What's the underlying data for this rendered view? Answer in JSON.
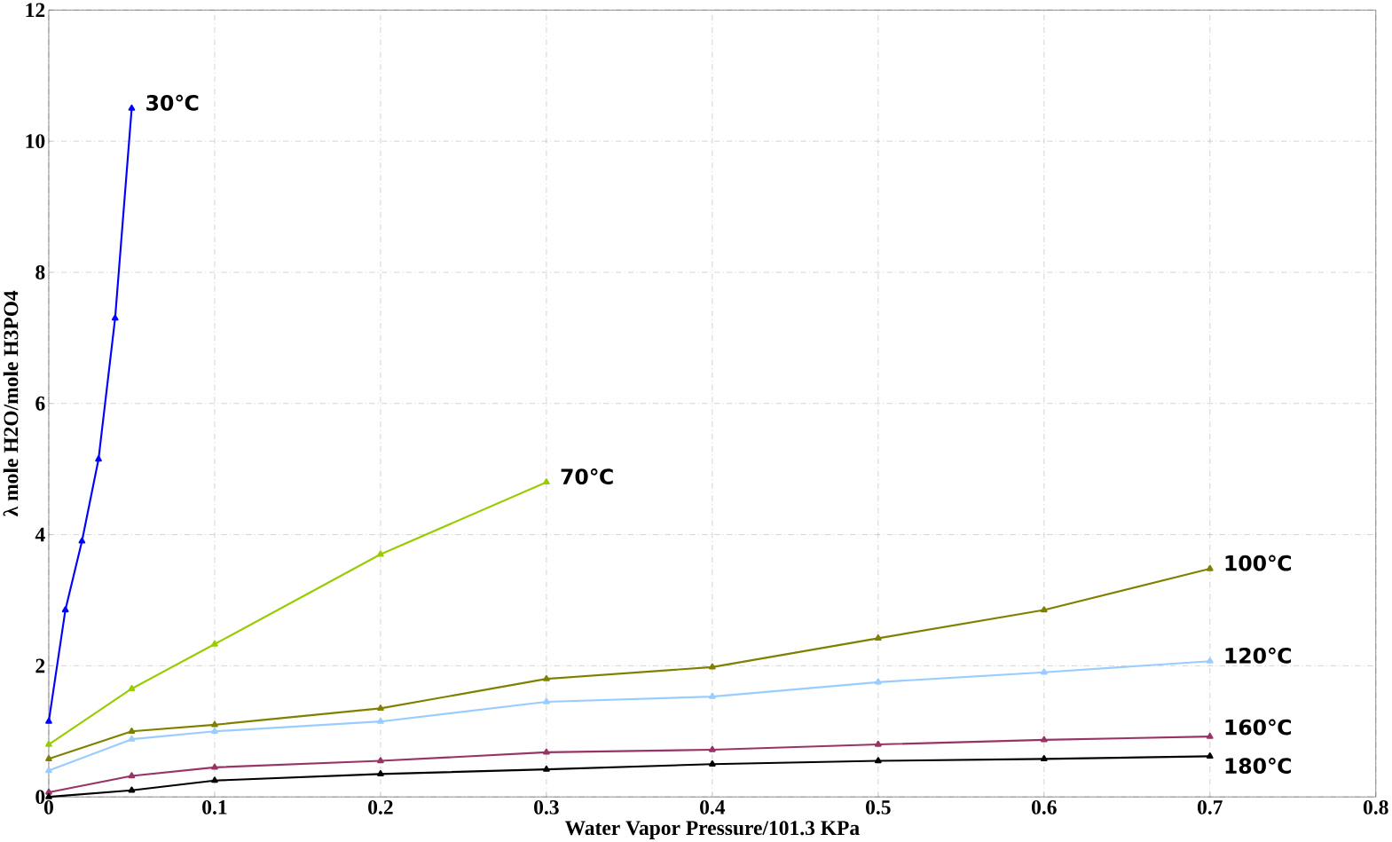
{
  "chart_data": {
    "type": "line",
    "xlabel": "Water Vapor Pressure/101.3 KPa",
    "ylabel": "λ mole H2O/mole H3PO4",
    "xlim": [
      0,
      0.8
    ],
    "ylim": [
      0,
      12
    ],
    "xticks": [
      0,
      0.1,
      0.2,
      0.3,
      0.4,
      0.5,
      0.6,
      0.7,
      0.8
    ],
    "yticks": [
      0,
      2,
      4,
      6,
      8,
      10,
      12
    ],
    "grid": true,
    "marker": "triangle",
    "line_style": "solid",
    "series": [
      {
        "name": "30℃",
        "color": "#0000ff",
        "x": [
          0,
          0.01,
          0.02,
          0.03,
          0.04,
          0.05
        ],
        "values": [
          1.15,
          2.85,
          3.9,
          5.15,
          7.3,
          10.5
        ]
      },
      {
        "name": "70℃",
        "color": "#99cc00",
        "x": [
          0,
          0.05,
          0.1,
          0.2,
          0.3
        ],
        "values": [
          0.8,
          1.65,
          2.33,
          3.7,
          4.8
        ]
      },
      {
        "name": "100℃",
        "color": "#808000",
        "x": [
          0,
          0.05,
          0.1,
          0.2,
          0.3,
          0.4,
          0.5,
          0.6,
          0.7
        ],
        "values": [
          0.58,
          1.0,
          1.1,
          1.35,
          1.8,
          1.98,
          2.42,
          2.85,
          3.48
        ]
      },
      {
        "name": "120℃",
        "color": "#99ccff",
        "x": [
          0,
          0.05,
          0.1,
          0.2,
          0.3,
          0.4,
          0.5,
          0.6,
          0.7
        ],
        "values": [
          0.4,
          0.88,
          1.0,
          1.15,
          1.45,
          1.53,
          1.75,
          1.9,
          2.07
        ]
      },
      {
        "name": "160℃",
        "color": "#993366",
        "x": [
          0,
          0.05,
          0.1,
          0.2,
          0.3,
          0.4,
          0.5,
          0.6,
          0.7
        ],
        "values": [
          0.07,
          0.32,
          0.45,
          0.55,
          0.68,
          0.72,
          0.8,
          0.87,
          0.92
        ]
      },
      {
        "name": "180℃",
        "color": "#000000",
        "x": [
          0,
          0.05,
          0.1,
          0.2,
          0.3,
          0.4,
          0.5,
          0.6,
          0.7
        ],
        "values": [
          0.0,
          0.1,
          0.25,
          0.35,
          0.42,
          0.5,
          0.55,
          0.58,
          0.62
        ]
      }
    ]
  }
}
